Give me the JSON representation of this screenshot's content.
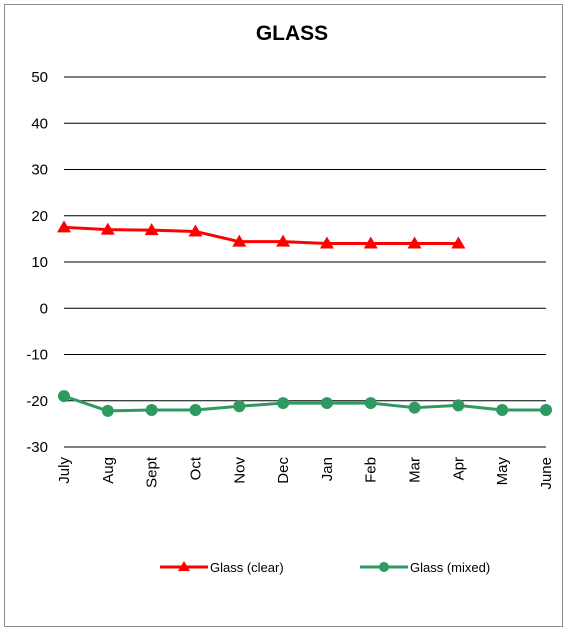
{
  "chart_data": {
    "type": "line",
    "title": "GLASS",
    "xlabel": "",
    "ylabel": "",
    "categories": [
      "July",
      "Aug",
      "Sept",
      "Oct",
      "Nov",
      "Dec",
      "Jan",
      "Feb",
      "Mar",
      "Apr",
      "May",
      "June"
    ],
    "ylim": [
      -30,
      50
    ],
    "yticks": [
      "50",
      "40",
      "30",
      "20",
      "10",
      "0",
      "-10",
      "-20",
      "-30"
    ],
    "grid": true,
    "legend_position": "bottom",
    "series": [
      {
        "name": "Glass (clear)",
        "color": "#ff0000",
        "marker": "triangle",
        "values": [
          17.5,
          17.0,
          16.9,
          16.6,
          14.4,
          14.4,
          14.0,
          14.0,
          14.0,
          14.0,
          null,
          null
        ]
      },
      {
        "name": "Glass (mixed)",
        "color": "#2e9960",
        "marker": "circle",
        "values": [
          -19.0,
          -22.2,
          -22.0,
          -22.0,
          -21.2,
          -20.5,
          -20.5,
          -20.5,
          -21.5,
          -21.0,
          -22.0,
          -22.0
        ]
      }
    ]
  }
}
